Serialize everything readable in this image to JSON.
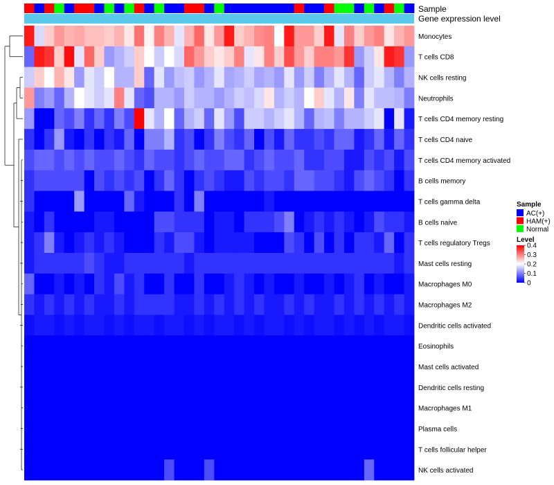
{
  "chart_data": {
    "type": "heatmap",
    "annotation_labels": [
      "Sample",
      "Gene expression level"
    ],
    "rows": [
      "Monocytes",
      "T cells CD8",
      "NK cells resting",
      "Neutrophils",
      "T cells CD4 memory resting",
      "T cells CD4 naive",
      "T cells CD4 memory activated",
      "B cells memory",
      "T cells gamma delta",
      "B cells naive",
      "T cells regulatory  Tregs",
      "Mast cells resting",
      "Macrophages M0",
      "Macrophages M2",
      "Dendritic cells activated",
      "Eosinophils",
      "Mast cells activated",
      "Dendritic cells resting",
      "Macrophages M1",
      "Plasma cells",
      "T cells follicular helper",
      "NK cells activated"
    ],
    "sample_groups": [
      "HAM(+)",
      "AC(+)",
      "HAM(+)",
      "Normal",
      "AC(+)",
      "HAM(+)",
      "HAM(+)",
      "AC(+)",
      "Normal",
      "AC(+)",
      "Normal",
      "HAM(+)",
      "AC(+)",
      "Normal",
      "AC(+)",
      "AC(+)",
      "HAM(+)",
      "HAM(+)",
      "AC(+)",
      "Normal",
      "AC(+)",
      "AC(+)",
      "AC(+)",
      "AC(+)",
      "AC(+)",
      "AC(+)",
      "AC(+)",
      "HAM(+)",
      "AC(+)",
      "AC(+)",
      "HAM(+)",
      "Normal",
      "Normal",
      "AC(+)",
      "Normal",
      "AC(+)",
      "HAM(+)",
      "Normal",
      "AC(+)"
    ],
    "values": [
      [
        0.38,
        0.17,
        0.24,
        0.28,
        0.26,
        0.27,
        0.25,
        0.25,
        0.24,
        0.26,
        0.22,
        0.31,
        0.21,
        0.3,
        0.26,
        0.18,
        0.26,
        0.32,
        0.22,
        0.28,
        0.38,
        0.24,
        0.26,
        0.29,
        0.3,
        0.2,
        0.38,
        0.28,
        0.28,
        0.24,
        0.38,
        0.18,
        0.3,
        0.24,
        0.28,
        0.3,
        0.22,
        0.26,
        0.28
      ],
      [
        0.08,
        0.38,
        0.36,
        0.24,
        0.39,
        0.18,
        0.32,
        0.24,
        0.12,
        0.14,
        0.16,
        0.24,
        0.2,
        0.16,
        0.2,
        0.17,
        0.32,
        0.28,
        0.24,
        0.22,
        0.24,
        0.3,
        0.18,
        0.22,
        0.3,
        0.24,
        0.34,
        0.28,
        0.24,
        0.3,
        0.3,
        0.28,
        0.36,
        0.12,
        0.16,
        0.22,
        0.38,
        0.36,
        0.12
      ],
      [
        0.16,
        0.24,
        0.2,
        0.26,
        0.22,
        0.12,
        0.18,
        0.16,
        0.2,
        0.14,
        0.14,
        0.24,
        0.08,
        0.18,
        0.12,
        0.15,
        0.16,
        0.12,
        0.14,
        0.18,
        0.13,
        0.14,
        0.16,
        0.13,
        0.14,
        0.12,
        0.18,
        0.12,
        0.16,
        0.1,
        0.14,
        0.18,
        0.14,
        0.08,
        0.16,
        0.18,
        0.14,
        0.1,
        0.14
      ],
      [
        0.28,
        0.1,
        0.12,
        0.08,
        0.14,
        0.2,
        0.18,
        0.16,
        0.18,
        0.3,
        0.18,
        0.08,
        0.06,
        0.14,
        0.14,
        0.12,
        0.16,
        0.14,
        0.14,
        0.12,
        0.14,
        0.16,
        0.15,
        0.17,
        0.22,
        0.14,
        0.16,
        0.14,
        0.2,
        0.24,
        0.18,
        0.14,
        0.22,
        0.1,
        0.18,
        0.15,
        0.15,
        0.14,
        0.1
      ],
      [
        0.12,
        0.0,
        0.0,
        0.08,
        0.06,
        0.1,
        0.04,
        0.08,
        0.04,
        0.1,
        0.06,
        0.4,
        0.18,
        0.14,
        0.2,
        0.08,
        0.14,
        0.16,
        0.08,
        0.18,
        0.12,
        0.06,
        0.16,
        0.16,
        0.14,
        0.16,
        0.18,
        0.14,
        0.08,
        0.14,
        0.15,
        0.1,
        0.14,
        0.14,
        0.16,
        0.18,
        0.0,
        0.18,
        0.02
      ],
      [
        0.04,
        0.0,
        0.04,
        0.12,
        0.02,
        0.0,
        0.04,
        0.0,
        0.04,
        0.02,
        0.08,
        0.0,
        0.1,
        0.1,
        0.14,
        0.04,
        0.06,
        0.0,
        0.04,
        0.1,
        0.06,
        0.04,
        0.08,
        0.0,
        0.06,
        0.02,
        0.08,
        0.04,
        0.04,
        0.06,
        0.04,
        0.08,
        0.08,
        0.02,
        0.04,
        0.08,
        0.02,
        0.08,
        0.04
      ],
      [
        0.06,
        0.08,
        0.08,
        0.06,
        0.08,
        0.06,
        0.08,
        0.06,
        0.06,
        0.08,
        0.06,
        0.04,
        0.08,
        0.06,
        0.06,
        0.04,
        0.06,
        0.08,
        0.06,
        0.06,
        0.08,
        0.08,
        0.04,
        0.06,
        0.08,
        0.06,
        0.06,
        0.08,
        0.04,
        0.04,
        0.06,
        0.06,
        0.02,
        0.02,
        0.06,
        0.04,
        0.06,
        0.02,
        0.06
      ],
      [
        0.04,
        0.06,
        0.06,
        0.06,
        0.06,
        0.06,
        0.0,
        0.06,
        0.04,
        0.06,
        0.04,
        0.06,
        0.0,
        0.04,
        0.08,
        0.04,
        0.0,
        0.04,
        0.06,
        0.04,
        0.02,
        0.02,
        0.06,
        0.04,
        0.06,
        0.06,
        0.04,
        0.08,
        0.08,
        0.06,
        0.06,
        0.04,
        0.02,
        0.06,
        0.08,
        0.06,
        0.04,
        0.0,
        0.04
      ],
      [
        0.04,
        0.0,
        0.0,
        0.0,
        0.0,
        0.12,
        0.0,
        0.0,
        0.0,
        0.0,
        0.08,
        0.02,
        0.0,
        0.0,
        0.0,
        0.04,
        0.0,
        0.1,
        0.0,
        0.0,
        0.0,
        0.0,
        0.0,
        0.0,
        0.02,
        0.0,
        0.0,
        0.0,
        0.0,
        0.0,
        0.0,
        0.0,
        0.0,
        0.0,
        0.0,
        0.0,
        0.0,
        0.0,
        0.0
      ],
      [
        0.02,
        0.0,
        0.04,
        0.0,
        0.0,
        0.0,
        0.0,
        0.02,
        0.02,
        0.0,
        0.0,
        0.0,
        0.0,
        0.06,
        0.06,
        0.04,
        0.04,
        0.04,
        0.0,
        0.02,
        0.02,
        0.0,
        0.04,
        0.04,
        0.04,
        0.06,
        0.1,
        0.0,
        0.02,
        0.04,
        0.02,
        0.04,
        0.02,
        0.0,
        0.02,
        0.06,
        0.04,
        0.04,
        0.02
      ],
      [
        0.02,
        0.04,
        0.1,
        0.02,
        0.0,
        0.02,
        0.04,
        0.02,
        0.04,
        0.02,
        0.0,
        0.0,
        0.0,
        0.04,
        0.02,
        0.06,
        0.06,
        0.02,
        0.0,
        0.02,
        0.02,
        0.02,
        0.02,
        0.0,
        0.0,
        0.0,
        0.06,
        0.04,
        0.0,
        0.06,
        0.0,
        0.04,
        0.0,
        0.04,
        0.04,
        0.02,
        0.08,
        0.0,
        0.04
      ],
      [
        0.02,
        0.04,
        0.04,
        0.04,
        0.04,
        0.04,
        0.06,
        0.04,
        0.02,
        0.02,
        0.04,
        0.04,
        0.04,
        0.04,
        0.04,
        0.04,
        0.02,
        0.04,
        0.04,
        0.04,
        0.04,
        0.04,
        0.04,
        0.04,
        0.04,
        0.04,
        0.04,
        0.04,
        0.04,
        0.04,
        0.04,
        0.04,
        0.04,
        0.04,
        0.04,
        0.04,
        0.04,
        0.02,
        0.04
      ],
      [
        0.08,
        0.0,
        0.0,
        0.02,
        0.0,
        0.02,
        0.0,
        0.04,
        0.02,
        0.06,
        0.02,
        0.04,
        0.0,
        0.0,
        0.04,
        0.0,
        0.0,
        0.04,
        0.0,
        0.0,
        0.02,
        0.04,
        0.02,
        0.0,
        0.02,
        0.0,
        0.0,
        0.02,
        0.0,
        0.0,
        0.02,
        0.0,
        0.02,
        0.04,
        0.0,
        0.02,
        0.0,
        0.0,
        0.02
      ],
      [
        0.04,
        0.02,
        0.04,
        0.02,
        0.04,
        0.02,
        0.04,
        0.02,
        0.02,
        0.04,
        0.02,
        0.04,
        0.04,
        0.04,
        0.04,
        0.02,
        0.02,
        0.04,
        0.02,
        0.04,
        0.02,
        0.04,
        0.02,
        0.04,
        0.02,
        0.02,
        0.04,
        0.02,
        0.04,
        0.02,
        0.02,
        0.04,
        0.02,
        0.04,
        0.02,
        0.04,
        0.02,
        0.04,
        0.02
      ],
      [
        0.01,
        0.02,
        0.02,
        0.01,
        0.02,
        0.01,
        0.02,
        0.02,
        0.01,
        0.02,
        0.01,
        0.02,
        0.02,
        0.01,
        0.02,
        0.02,
        0.01,
        0.02,
        0.01,
        0.02,
        0.02,
        0.01,
        0.02,
        0.01,
        0.02,
        0.02,
        0.01,
        0.02,
        0.01,
        0.02,
        0.02,
        0.01,
        0.02,
        0.01,
        0.02,
        0.01,
        0.02,
        0.02,
        0.01
      ],
      [
        0.0,
        0.0,
        0.0,
        0.0,
        0.0,
        0.0,
        0.0,
        0.0,
        0.0,
        0.0,
        0.0,
        0.0,
        0.0,
        0.0,
        0.0,
        0.0,
        0.0,
        0.0,
        0.0,
        0.0,
        0.0,
        0.0,
        0.0,
        0.0,
        0.0,
        0.0,
        0.0,
        0.0,
        0.0,
        0.0,
        0.0,
        0.0,
        0.0,
        0.0,
        0.0,
        0.0,
        0.0,
        0.0,
        0.0
      ],
      [
        0.0,
        0.0,
        0.0,
        0.0,
        0.0,
        0.0,
        0.0,
        0.0,
        0.0,
        0.0,
        0.0,
        0.0,
        0.0,
        0.0,
        0.0,
        0.0,
        0.0,
        0.0,
        0.0,
        0.0,
        0.0,
        0.0,
        0.0,
        0.0,
        0.0,
        0.0,
        0.0,
        0.0,
        0.0,
        0.0,
        0.0,
        0.0,
        0.0,
        0.0,
        0.0,
        0.0,
        0.0,
        0.0,
        0.0
      ],
      [
        0.0,
        0.0,
        0.0,
        0.0,
        0.0,
        0.0,
        0.0,
        0.0,
        0.0,
        0.0,
        0.0,
        0.0,
        0.0,
        0.0,
        0.0,
        0.0,
        0.0,
        0.0,
        0.0,
        0.0,
        0.0,
        0.0,
        0.0,
        0.0,
        0.0,
        0.0,
        0.0,
        0.0,
        0.0,
        0.0,
        0.0,
        0.0,
        0.0,
        0.0,
        0.0,
        0.0,
        0.0,
        0.0,
        0.0
      ],
      [
        0.0,
        0.0,
        0.0,
        0.0,
        0.0,
        0.0,
        0.0,
        0.0,
        0.0,
        0.0,
        0.0,
        0.0,
        0.0,
        0.0,
        0.0,
        0.0,
        0.0,
        0.0,
        0.0,
        0.0,
        0.0,
        0.0,
        0.0,
        0.0,
        0.0,
        0.0,
        0.0,
        0.0,
        0.0,
        0.0,
        0.0,
        0.0,
        0.0,
        0.0,
        0.0,
        0.0,
        0.0,
        0.0,
        0.0
      ],
      [
        0.0,
        0.0,
        0.0,
        0.0,
        0.0,
        0.0,
        0.0,
        0.0,
        0.0,
        0.0,
        0.0,
        0.0,
        0.0,
        0.0,
        0.0,
        0.0,
        0.0,
        0.0,
        0.0,
        0.0,
        0.0,
        0.0,
        0.0,
        0.0,
        0.0,
        0.0,
        0.0,
        0.0,
        0.0,
        0.0,
        0.0,
        0.0,
        0.0,
        0.0,
        0.0,
        0.0,
        0.0,
        0.0,
        0.0
      ],
      [
        0.0,
        0.0,
        0.0,
        0.0,
        0.0,
        0.0,
        0.0,
        0.0,
        0.0,
        0.0,
        0.0,
        0.0,
        0.0,
        0.0,
        0.0,
        0.0,
        0.0,
        0.0,
        0.0,
        0.0,
        0.0,
        0.0,
        0.0,
        0.0,
        0.0,
        0.0,
        0.0,
        0.0,
        0.0,
        0.0,
        0.0,
        0.0,
        0.0,
        0.0,
        0.0,
        0.0,
        0.0,
        0.0,
        0.0
      ],
      [
        0.0,
        0.0,
        0.0,
        0.0,
        0.0,
        0.0,
        0.0,
        0.0,
        0.0,
        0.0,
        0.0,
        0.0,
        0.0,
        0.0,
        0.06,
        0.0,
        0.0,
        0.0,
        0.06,
        0.0,
        0.0,
        0.0,
        0.0,
        0.0,
        0.0,
        0.0,
        0.0,
        0.0,
        0.0,
        0.0,
        0.0,
        0.0,
        0.0,
        0.0,
        0.08,
        0.0,
        0.0,
        0.0,
        0.0
      ]
    ],
    "legend_sample": {
      "title": "Sample",
      "entries": [
        {
          "label": "AC(+)",
          "color": "#0000ff"
        },
        {
          "label": "HAM(+)",
          "color": "#ff0000"
        },
        {
          "label": "Normal",
          "color": "#00ff00"
        }
      ]
    },
    "legend_level": {
      "title": "Level",
      "ticks": [
        "0.4",
        "0.3",
        "0.2",
        "0.1",
        "0"
      ],
      "range": [
        0,
        0.4
      ],
      "colors": {
        "low": "#0000ff",
        "mid": "#ffffff",
        "high": "#ff0000"
      }
    },
    "expression_bar_color": "#5bc8ec"
  }
}
